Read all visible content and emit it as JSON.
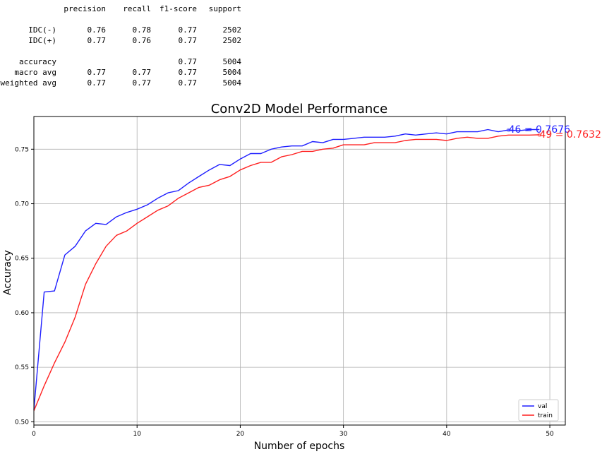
{
  "report": {
    "headers": [
      "precision",
      "recall",
      "f1-score",
      "support"
    ],
    "rows": [
      {
        "label": "IDC(-)",
        "precision": "0.76",
        "recall": "0.78",
        "f1": "0.77",
        "support": "2502"
      },
      {
        "label": "IDC(+)",
        "precision": "0.77",
        "recall": "0.76",
        "f1": "0.77",
        "support": "2502"
      },
      {
        "label": "accuracy",
        "precision": "",
        "recall": "",
        "f1": "0.77",
        "support": "5004"
      },
      {
        "label": "macro avg",
        "precision": "0.77",
        "recall": "0.77",
        "f1": "0.77",
        "support": "5004"
      },
      {
        "label": "weighted avg",
        "precision": "0.77",
        "recall": "0.77",
        "f1": "0.77",
        "support": "5004"
      }
    ]
  },
  "chart_data": {
    "type": "line",
    "title": "Conv2D Model Performance",
    "xlabel": "Number of epochs",
    "ylabel": "Accuracy",
    "xlim": [
      0,
      51.5
    ],
    "ylim": [
      0.497,
      0.78
    ],
    "xticks": [
      0,
      10,
      20,
      30,
      40,
      50
    ],
    "yticks": [
      0.5,
      0.55,
      0.6,
      0.65,
      0.7,
      0.75
    ],
    "grid": true,
    "legend_position": "lower-right",
    "x": [
      0,
      1,
      2,
      3,
      4,
      5,
      6,
      7,
      8,
      9,
      10,
      11,
      12,
      13,
      14,
      15,
      16,
      17,
      18,
      19,
      20,
      21,
      22,
      23,
      24,
      25,
      26,
      27,
      28,
      29,
      30,
      31,
      32,
      33,
      34,
      35,
      36,
      37,
      38,
      39,
      40,
      41,
      42,
      43,
      44,
      45,
      46,
      47,
      48,
      49
    ],
    "series": [
      {
        "name": "val",
        "color": "#1f1fff",
        "values": [
          0.511,
          0.619,
          0.62,
          0.653,
          0.661,
          0.675,
          0.682,
          0.681,
          0.688,
          0.692,
          0.695,
          0.699,
          0.705,
          0.71,
          0.712,
          0.719,
          0.725,
          0.731,
          0.736,
          0.735,
          0.741,
          0.746,
          0.746,
          0.75,
          0.752,
          0.753,
          0.753,
          0.757,
          0.756,
          0.759,
          0.759,
          0.76,
          0.761,
          0.761,
          0.761,
          0.762,
          0.764,
          0.763,
          0.764,
          0.765,
          0.764,
          0.766,
          0.766,
          0.766,
          0.768,
          0.766,
          0.7676,
          0.767,
          0.768,
          0.768
        ],
        "annotation": "46 = 0.7676",
        "annotation_x": 46,
        "annotation_y": 0.7676
      },
      {
        "name": "train",
        "color": "#ff1f1f",
        "values": [
          0.51,
          0.533,
          0.554,
          0.573,
          0.596,
          0.626,
          0.645,
          0.661,
          0.671,
          0.675,
          0.682,
          0.688,
          0.694,
          0.698,
          0.705,
          0.71,
          0.715,
          0.717,
          0.722,
          0.725,
          0.731,
          0.735,
          0.738,
          0.738,
          0.743,
          0.745,
          0.748,
          0.748,
          0.75,
          0.751,
          0.754,
          0.754,
          0.754,
          0.756,
          0.756,
          0.756,
          0.758,
          0.759,
          0.759,
          0.759,
          0.758,
          0.76,
          0.761,
          0.76,
          0.76,
          0.762,
          0.763,
          0.763,
          0.763,
          0.7632
        ],
        "annotation": "49 = 0.7632",
        "annotation_x": 49,
        "annotation_y": 0.7632
      }
    ]
  }
}
